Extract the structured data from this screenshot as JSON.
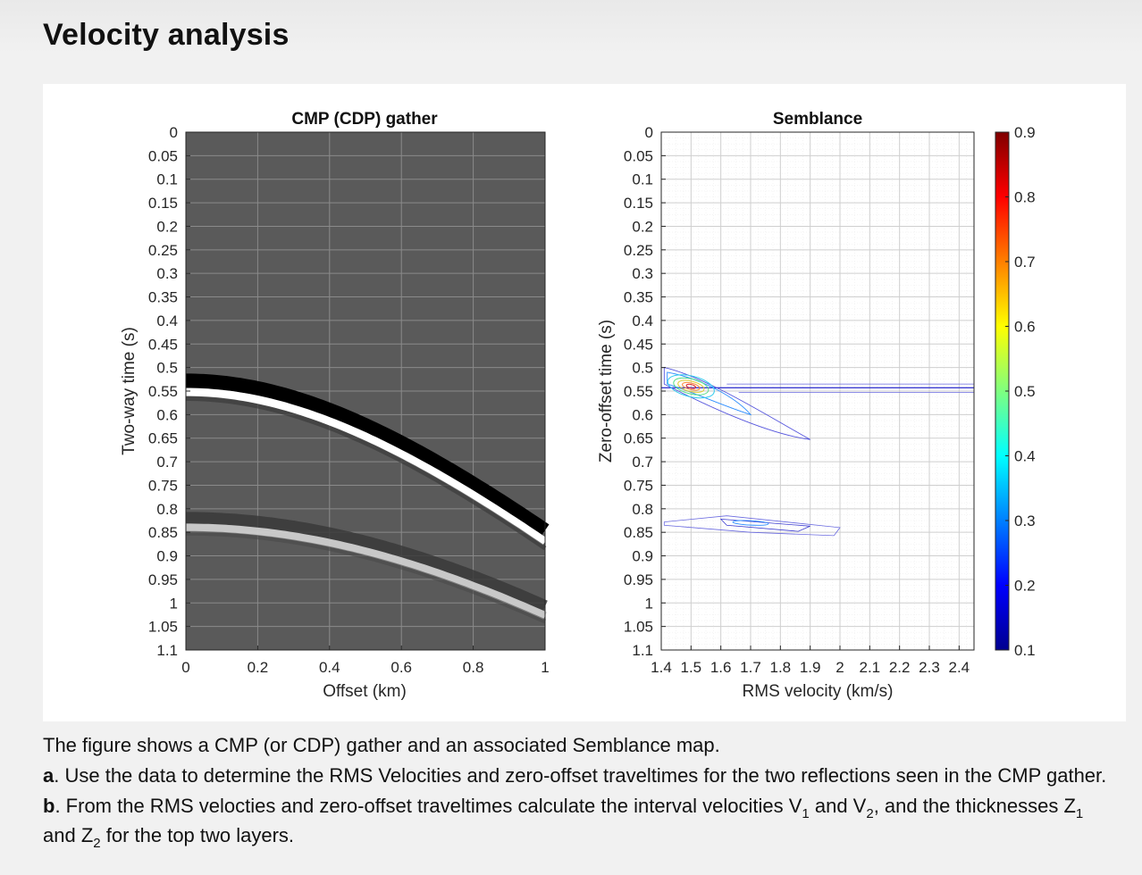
{
  "page": {
    "title": "Velocity analysis"
  },
  "chart_data": [
    {
      "type": "heatmap",
      "title": "CMP (CDP) gather",
      "xlabel": "Offset (km)",
      "ylabel": "Two-way time (s)",
      "xlim": [
        0,
        1
      ],
      "ylim": [
        0,
        1.1
      ],
      "y_reversed": true,
      "xticks": [
        "0",
        "0.2",
        "0.4",
        "0.6",
        "0.8",
        "1"
      ],
      "yticks": [
        "0",
        "0.05",
        "0.1",
        "0.15",
        "0.2",
        "0.25",
        "0.3",
        "0.35",
        "0.4",
        "0.45",
        "0.5",
        "0.55",
        "0.6",
        "0.65",
        "0.7",
        "0.75",
        "0.8",
        "0.85",
        "0.9",
        "0.95",
        "1",
        "1.05",
        "1.1"
      ],
      "grid": true,
      "background": "#5a5a5a",
      "reflections": [
        {
          "t0": 0.54,
          "v_rms": 1.5,
          "amplitude": "strong"
        },
        {
          "t0": 0.83,
          "v_rms": 1.7,
          "amplitude": "weak"
        }
      ]
    },
    {
      "type": "contour",
      "title": "Semblance",
      "xlabel": "RMS velocity (km/s)",
      "ylabel": "Zero-offset time (s)",
      "xlim": [
        1.4,
        2.45
      ],
      "ylim": [
        0,
        1.1
      ],
      "y_reversed": true,
      "xticks": [
        "1.4",
        "1.5",
        "1.6",
        "1.7",
        "1.8",
        "1.9",
        "2",
        "2.1",
        "2.2",
        "2.3",
        "2.4"
      ],
      "yticks": [
        "0",
        "0.05",
        "0.1",
        "0.15",
        "0.2",
        "0.25",
        "0.3",
        "0.35",
        "0.4",
        "0.45",
        "0.5",
        "0.55",
        "0.6",
        "0.65",
        "0.7",
        "0.75",
        "0.8",
        "0.85",
        "0.9",
        "0.95",
        "1",
        "1.05",
        "1.1"
      ],
      "grid": true,
      "peaks": [
        {
          "v_rms": 1.5,
          "t0": 0.54,
          "semblance": 0.9
        },
        {
          "v_rms": 1.7,
          "t0": 0.83,
          "semblance": 0.45
        }
      ],
      "colorbar": {
        "min": 0.1,
        "max": 0.9,
        "ticks": [
          "0.9",
          "0.8",
          "0.7",
          "0.6",
          "0.5",
          "0.4",
          "0.3",
          "0.2",
          "0.1"
        ],
        "colormap": "jet"
      }
    }
  ],
  "question": {
    "intro": "The figure shows a CMP (or CDP) gather and an associated Semblance map.",
    "a_label": "a",
    "a_text": ". Use the data to determine the RMS Velocities and zero-offset traveltimes for the two reflections seen in the CMP gather.",
    "b_label": "b",
    "b_text_1": ". From the RMS velocties and zero-offset traveltimes calculate the interval velocities V",
    "b_sub_1": "1",
    "b_text_2": " and V",
    "b_sub_2": "2",
    "b_text_3": ", and the thicknesses Z",
    "b_sub_3": "1",
    "b_text_4": " and Z",
    "b_sub_4": "2",
    "b_text_5": " for the top two layers."
  }
}
